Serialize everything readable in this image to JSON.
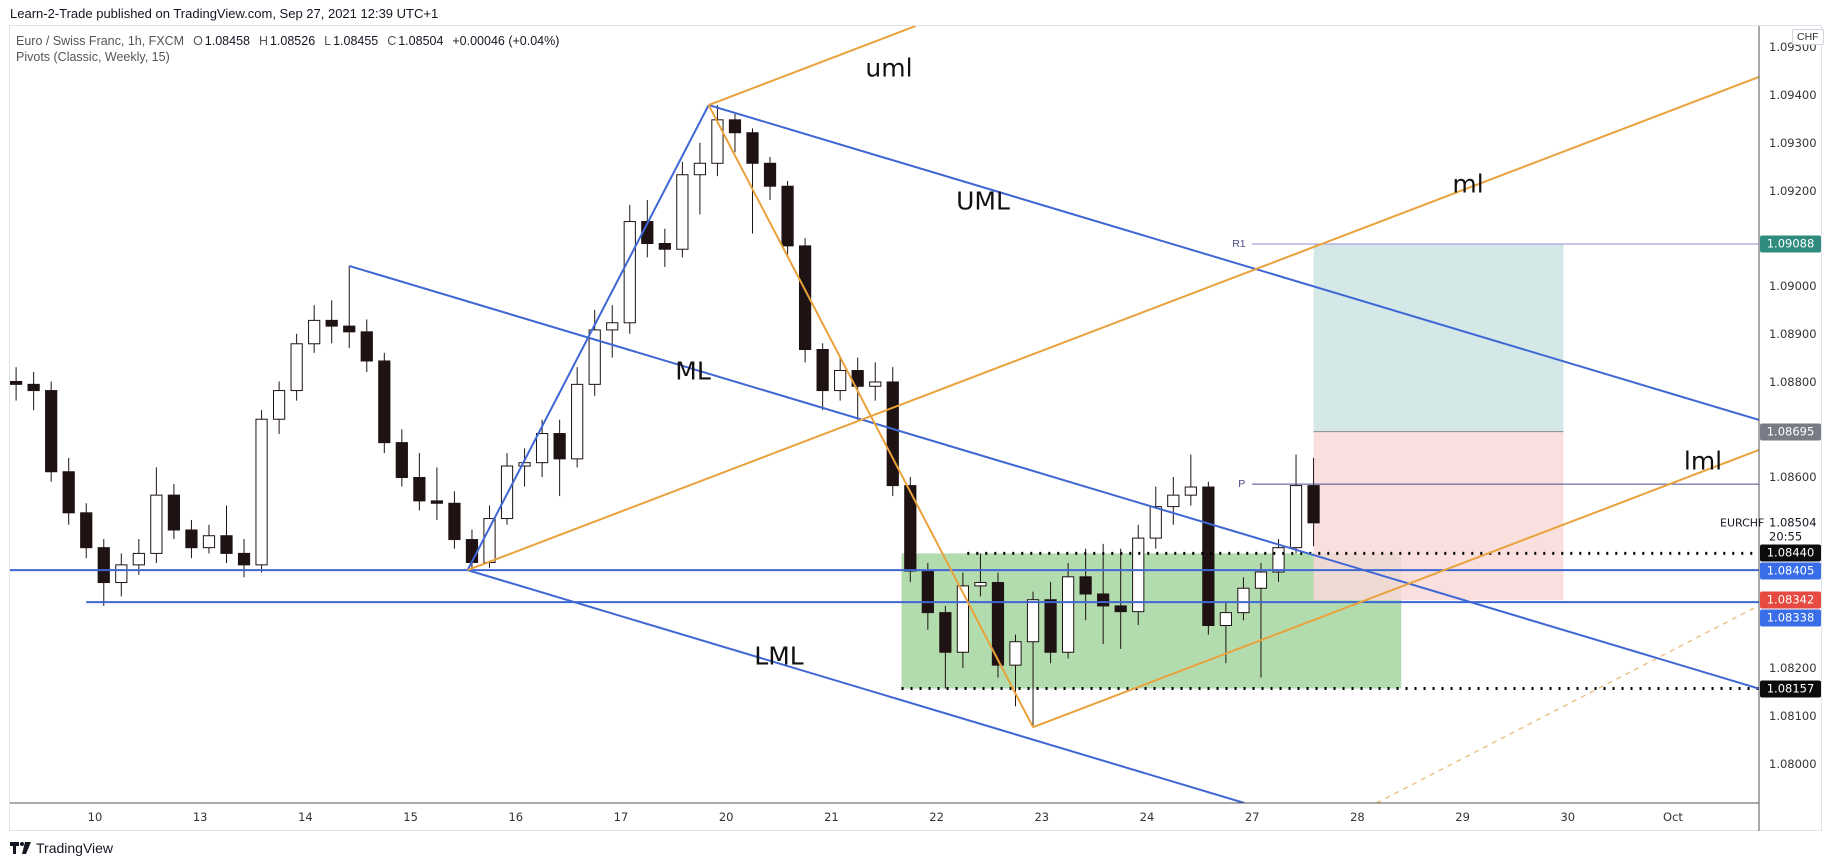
{
  "publish_line": "Learn-2-Trade published on TradingView.com, Sep 27, 2021 12:39 UTC+1",
  "legend": {
    "symbol_desc": "Euro / Swiss Franc, 1h, FXCM",
    "o_label": "O",
    "o": "1.08458",
    "h_label": "H",
    "h": "1.08526",
    "l_label": "L",
    "l": "1.08455",
    "c_label": "C",
    "c": "1.08504",
    "change": "+0.00046 (+0.04%)",
    "indicator": "Pivots (Classic, Weekly, 15)"
  },
  "currency_button": "CHF",
  "symbol": "EURCHF",
  "last_price": "1.08504",
  "countdown": "20:55",
  "logo_text": "TradingView",
  "colors": {
    "pitchfork_blue": "#3f67d4",
    "pitchfork_orange": "#e9a23b",
    "candle_up": "#ffffff",
    "candle_down": "#1f1212",
    "zone_green": "#b2dcae",
    "target_teal": "#d4e9e7",
    "stop_pink": "#f9d9d9",
    "label_green": "#2e8b7e",
    "label_gray": "#787b86",
    "label_red": "#e5493f",
    "label_blue": "#3a6ee8",
    "label_black": "#0b0b0b",
    "pivot_r1": "#9a8fd6",
    "pivot_p": "#4a4a8a"
  },
  "chart_data": {
    "type": "candlestick",
    "symbol": "EURCHF",
    "interval_note": "1h",
    "price_range": [
      1.0795,
      1.0953
    ],
    "price_ticks": [
      1.095,
      1.094,
      1.093,
      1.092,
      1.091,
      1.09,
      1.089,
      1.088,
      1.087,
      1.086,
      1.085,
      1.084,
      1.083,
      1.082,
      1.081,
      1.08
    ],
    "time_ticks": [
      {
        "label": "10",
        "date": "2021-09-10"
      },
      {
        "label": "13",
        "date": "2021-09-13"
      },
      {
        "label": "14",
        "date": "2021-09-14"
      },
      {
        "label": "15",
        "date": "2021-09-15"
      },
      {
        "label": "16",
        "date": "2021-09-16"
      },
      {
        "label": "17",
        "date": "2021-09-17"
      },
      {
        "label": "20",
        "date": "2021-09-20"
      },
      {
        "label": "21",
        "date": "2021-09-21"
      },
      {
        "label": "22",
        "date": "2021-09-22"
      },
      {
        "label": "23",
        "date": "2021-09-23"
      },
      {
        "label": "24",
        "date": "2021-09-24"
      },
      {
        "label": "27",
        "date": "2021-09-27"
      },
      {
        "label": "28",
        "date": "2021-09-28"
      },
      {
        "label": "29",
        "date": "2021-09-29"
      },
      {
        "label": "30",
        "date": "2021-09-30"
      },
      {
        "label": "Oct",
        "date": "2021-10-01"
      }
    ],
    "ohlc_columns": [
      "time",
      "open",
      "high",
      "low",
      "close"
    ],
    "ohlc": [
      [
        "2021-09-09 04:00",
        1.088,
        1.0883,
        1.0876,
        1.08794
      ],
      [
        "2021-09-09 08:00",
        1.08794,
        1.0882,
        1.0874,
        1.08781
      ],
      [
        "2021-09-09 12:00",
        1.08781,
        1.088,
        1.0859,
        1.08611
      ],
      [
        "2021-09-09 16:00",
        1.08611,
        1.0864,
        1.085,
        1.08525
      ],
      [
        "2021-09-09 20:00",
        1.08525,
        1.08545,
        1.0843,
        1.08452
      ],
      [
        "2021-09-10 00:00",
        1.08452,
        1.0847,
        1.0833,
        1.08379
      ],
      [
        "2021-09-10 04:00",
        1.08379,
        1.0844,
        1.0835,
        1.08416
      ],
      [
        "2021-09-10 08:00",
        1.08416,
        1.0847,
        1.08395,
        1.0844
      ],
      [
        "2021-09-10 12:00",
        1.0844,
        1.0862,
        1.0842,
        1.08562
      ],
      [
        "2021-09-10 16:00",
        1.08562,
        1.08585,
        1.0847,
        1.08489
      ],
      [
        "2021-09-10 20:00",
        1.08489,
        1.0851,
        1.0843,
        1.08452
      ],
      [
        "2021-09-13 00:00",
        1.08452,
        1.085,
        1.0844,
        1.08477
      ],
      [
        "2021-09-13 04:00",
        1.08477,
        1.0854,
        1.0842,
        1.0844
      ],
      [
        "2021-09-13 08:00",
        1.0844,
        1.0847,
        1.0839,
        1.08416
      ],
      [
        "2021-09-13 12:00",
        1.08416,
        1.0874,
        1.084,
        1.08721
      ],
      [
        "2021-09-13 16:00",
        1.08721,
        1.088,
        1.0869,
        1.08781
      ],
      [
        "2021-09-13 20:00",
        1.08781,
        1.089,
        1.0876,
        1.08879
      ],
      [
        "2021-09-14 00:00",
        1.08879,
        1.0896,
        1.0886,
        1.08928
      ],
      [
        "2021-09-14 04:00",
        1.08928,
        1.0897,
        1.0888,
        1.08916
      ],
      [
        "2021-09-14 08:00",
        1.08916,
        1.09042,
        1.0887,
        1.08904
      ],
      [
        "2021-09-14 12:00",
        1.08904,
        1.0893,
        1.0882,
        1.08843
      ],
      [
        "2021-09-14 16:00",
        1.08843,
        1.0886,
        1.0865,
        1.08672
      ],
      [
        "2021-09-14 20:00",
        1.08672,
        1.087,
        1.0858,
        1.08599
      ],
      [
        "2021-09-15 00:00",
        1.08599,
        1.0865,
        1.0853,
        1.0855
      ],
      [
        "2021-09-15 04:00",
        1.0855,
        1.0862,
        1.0851,
        1.08545
      ],
      [
        "2021-09-15 08:00",
        1.08545,
        1.0857,
        1.0845,
        1.08469
      ],
      [
        "2021-09-15 12:00",
        1.08469,
        1.0849,
        1.08405,
        1.08421
      ],
      [
        "2021-09-15 16:00",
        1.08421,
        1.0854,
        1.0841,
        1.08513
      ],
      [
        "2021-09-15 20:00",
        1.08513,
        1.0865,
        1.085,
        1.08623
      ],
      [
        "2021-09-16 00:00",
        1.08623,
        1.0866,
        1.0858,
        1.0863
      ],
      [
        "2021-09-16 04:00",
        1.0863,
        1.0872,
        1.086,
        1.08691
      ],
      [
        "2021-09-16 08:00",
        1.08691,
        1.0872,
        1.0856,
        1.08638
      ],
      [
        "2021-09-16 12:00",
        1.08638,
        1.0883,
        1.0862,
        1.08794
      ],
      [
        "2021-09-16 16:00",
        1.08794,
        1.0895,
        1.0877,
        1.08908
      ],
      [
        "2021-09-16 20:00",
        1.08908,
        1.0896,
        1.0885,
        1.08923
      ],
      [
        "2021-09-17 00:00",
        1.08923,
        1.0917,
        1.089,
        1.09135
      ],
      [
        "2021-09-17 04:00",
        1.09135,
        1.0918,
        1.0906,
        1.09089
      ],
      [
        "2021-09-17 08:00",
        1.09089,
        1.0912,
        1.0904,
        1.09077
      ],
      [
        "2021-09-17 12:00",
        1.09077,
        1.0926,
        1.0906,
        1.09233
      ],
      [
        "2021-09-17 16:00",
        1.09233,
        1.093,
        1.0915,
        1.09257
      ],
      [
        "2021-09-17 20:00",
        1.09257,
        1.09379,
        1.0923,
        1.09348
      ],
      [
        "2021-09-20 00:00",
        1.09348,
        1.0936,
        1.0928,
        1.09321
      ],
      [
        "2021-09-20 04:00",
        1.09321,
        1.0933,
        1.0911,
        1.09257
      ],
      [
        "2021-09-20 08:00",
        1.09257,
        1.0927,
        1.0918,
        1.09209
      ],
      [
        "2021-09-20 12:00",
        1.09209,
        1.0922,
        1.0906,
        1.09084
      ],
      [
        "2021-09-20 16:00",
        1.09084,
        1.091,
        1.0884,
        1.08867
      ],
      [
        "2021-09-20 20:00",
        1.08867,
        1.0888,
        1.0874,
        1.08781
      ],
      [
        "2021-09-21 00:00",
        1.08781,
        1.0885,
        1.0876,
        1.08823
      ],
      [
        "2021-09-21 04:00",
        1.08823,
        1.0885,
        1.0872,
        1.0879
      ],
      [
        "2021-09-21 08:00",
        1.0879,
        1.0884,
        1.0876,
        1.08799
      ],
      [
        "2021-09-21 12:00",
        1.08799,
        1.0883,
        1.0856,
        1.08582
      ],
      [
        "2021-09-21 16:00",
        1.08582,
        1.086,
        1.0838,
        1.08403
      ],
      [
        "2021-09-21 20:00",
        1.08403,
        1.0842,
        1.0828,
        1.08316
      ],
      [
        "2021-09-22 00:00",
        1.08316,
        1.0833,
        1.08157,
        1.08233
      ],
      [
        "2021-09-22 04:00",
        1.08233,
        1.084,
        1.082,
        1.08372
      ],
      [
        "2021-09-22 08:00",
        1.08372,
        1.0844,
        1.0835,
        1.08379
      ],
      [
        "2021-09-22 12:00",
        1.08379,
        1.084,
        1.0818,
        1.08206
      ],
      [
        "2021-09-22 16:00",
        1.08206,
        1.0827,
        1.0812,
        1.08255
      ],
      [
        "2021-09-22 20:00",
        1.08255,
        1.0836,
        1.08076,
        1.08343
      ],
      [
        "2021-09-23 00:00",
        1.08343,
        1.0838,
        1.0821,
        1.08233
      ],
      [
        "2021-09-23 04:00",
        1.08233,
        1.0842,
        1.0822,
        1.08391
      ],
      [
        "2021-09-23 08:00",
        1.08391,
        1.0845,
        1.083,
        1.08355
      ],
      [
        "2021-09-23 12:00",
        1.08355,
        1.0846,
        1.0825,
        1.0833
      ],
      [
        "2021-09-23 16:00",
        1.0833,
        1.0845,
        1.0824,
        1.08318
      ],
      [
        "2021-09-23 20:00",
        1.08318,
        1.085,
        1.0829,
        1.08472
      ],
      [
        "2021-09-24 00:00",
        1.08472,
        1.0858,
        1.0845,
        1.08538
      ],
      [
        "2021-09-24 04:00",
        1.08538,
        1.086,
        1.085,
        1.08562
      ],
      [
        "2021-09-24 08:00",
        1.08562,
        1.08647,
        1.0854,
        1.08579
      ],
      [
        "2021-09-24 12:00",
        1.08579,
        1.0859,
        1.0827,
        1.08289
      ],
      [
        "2021-09-24 16:00",
        1.08289,
        1.0834,
        1.0821,
        1.08316
      ],
      [
        "2021-09-24 20:00",
        1.08316,
        1.0839,
        1.083,
        1.08367
      ],
      [
        "2021-09-27 00:00",
        1.08367,
        1.0842,
        1.0818,
        1.08401
      ],
      [
        "2021-09-27 04:00",
        1.08401,
        1.0847,
        1.0838,
        1.08452
      ],
      [
        "2021-09-27 08:00",
        1.08452,
        1.08647,
        1.0844,
        1.08582
      ],
      [
        "2021-09-27 12:00",
        1.08582,
        1.0864,
        1.08455,
        1.08504
      ]
    ],
    "drawings": {
      "pitchfork_blue": {
        "p0": [
          "2021-09-14 10:00",
          1.09042
        ],
        "p1": [
          "2021-09-17 20:00",
          1.09379
        ],
        "p2": [
          "2021-09-15 13:00",
          1.08405
        ],
        "labels": {
          "upper": "UML",
          "median": "ML",
          "lower": "LML"
        }
      },
      "pitchfork_orange": {
        "p0": [
          "2021-09-15 13:00",
          1.08405
        ],
        "p1": [
          "2021-09-17 20:00",
          1.09379
        ],
        "p2": [
          "2021-09-22 22:00",
          1.08076
        ],
        "labels": {
          "upper": "uml",
          "median": "ml",
          "lower": "lml"
        }
      },
      "dashed_line": {
        "a": [
          "2021-09-27 15:00",
          1.07854
        ],
        "b": [
          "2021-09-30 12:00",
          1.08181
        ]
      },
      "horizontal_lines": [
        {
          "price": 1.08405,
          "from": "2021-09-09 04:00",
          "label": "1.08405"
        },
        {
          "price": 1.08338,
          "from": "2021-09-09 22:00",
          "label": "1.08338"
        }
      ],
      "zone": {
        "from": "2021-09-21 16:00",
        "to": "2021-09-28 10:00",
        "top": 1.0844,
        "bottom": 1.08157
      },
      "dotted_lines": [
        {
          "price": 1.0844,
          "from": "2021-09-22 07:00",
          "label": "1.08440"
        },
        {
          "price": 1.08157,
          "from": "2021-09-21 16:00",
          "label": "1.08157"
        }
      ],
      "long_position": {
        "from": "2021-09-27 14:00",
        "to": "2021-09-29 23:00",
        "entry": 1.08695,
        "target": 1.09088,
        "stop": 1.08342,
        "entry_label": "1.08695",
        "target_label": "1.09088",
        "stop_label": "1.08342"
      },
      "pivots": [
        {
          "name": "R1",
          "price": 1.09088,
          "from": "2021-09-27 00:00"
        },
        {
          "name": "P",
          "price": 1.08585,
          "from": "2021-09-27 00:00"
        }
      ]
    }
  }
}
